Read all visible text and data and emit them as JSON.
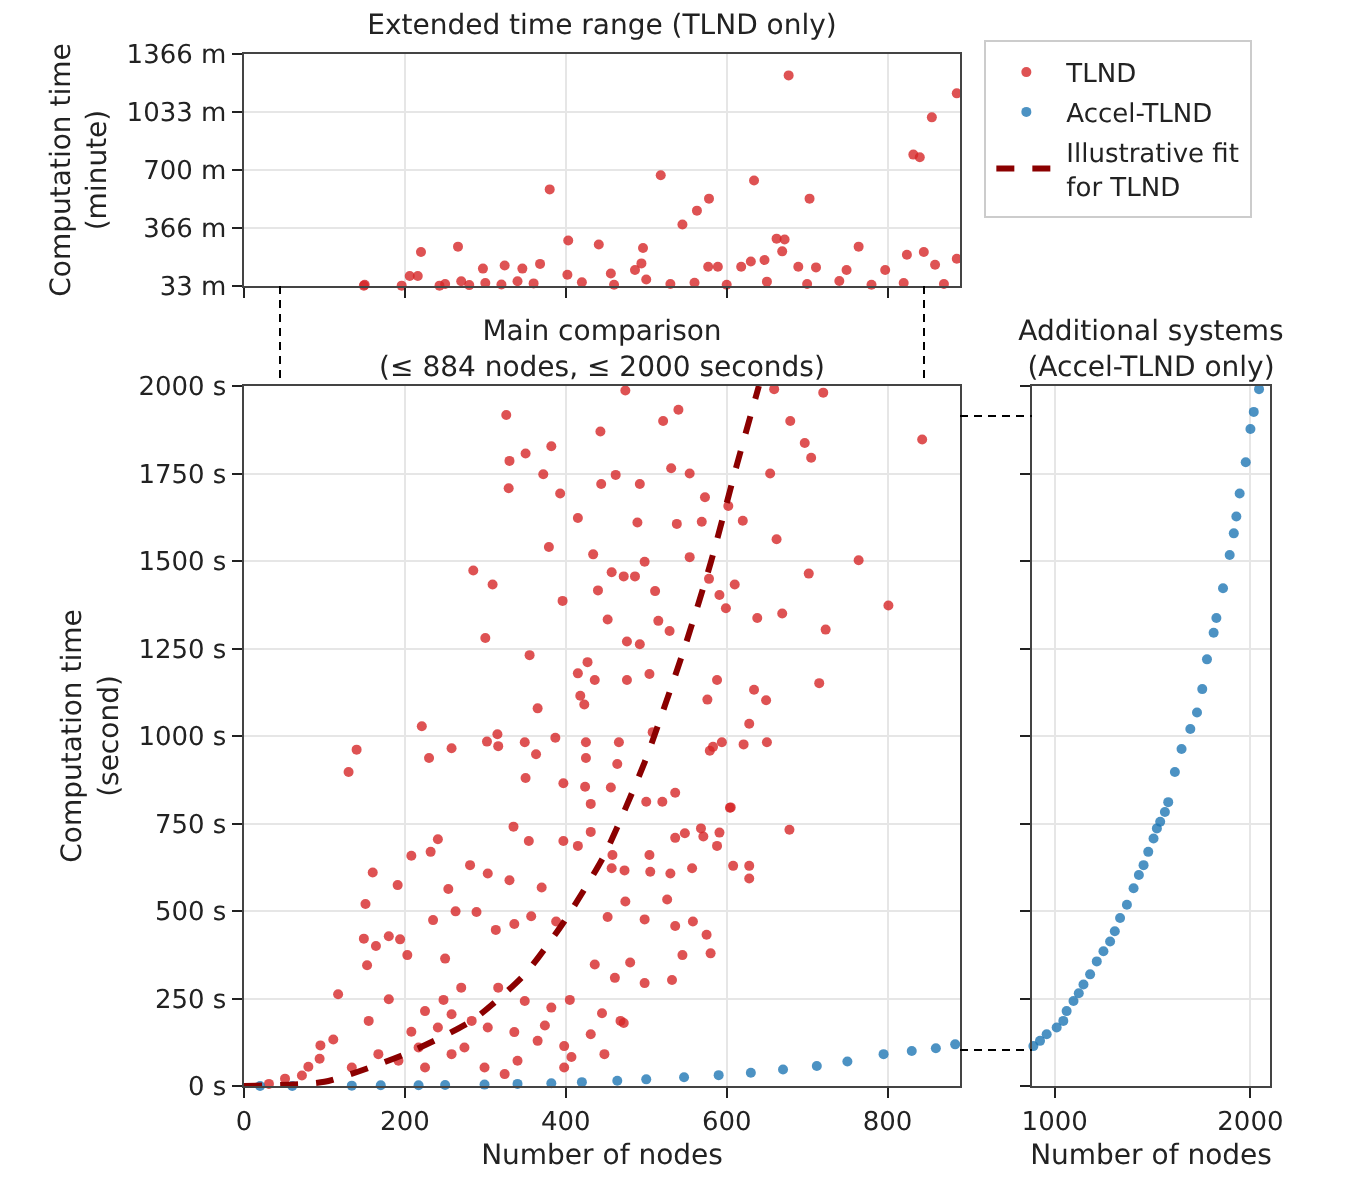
{
  "chart_data": [
    {
      "type": "scatter",
      "title": "Extended time range (TLND only)",
      "ylabel": "Computation time\n(minute)",
      "marker": "circle",
      "grid": true,
      "tick_labels": "y",
      "xlim": [
        0,
        890
      ],
      "xticks": [
        {
          "value": 0,
          "label": null
        },
        {
          "value": 200,
          "label": null
        },
        {
          "value": 400,
          "label": null
        },
        {
          "value": 600,
          "label": null
        },
        {
          "value": 800,
          "label": null
        }
      ],
      "ylim": [
        33,
        1366
      ],
      "yticks": [
        {
          "value": 33,
          "label": "33 m"
        },
        {
          "value": 366,
          "label": "366 m"
        },
        {
          "value": 700,
          "label": "700 m"
        },
        {
          "value": 1033,
          "label": "1033 m"
        },
        {
          "value": 1366,
          "label": "1366 m"
        }
      ],
      "series": [
        {
          "color": "#d62728",
          "x": [
            149,
            196,
            206,
            216,
            220,
            243,
            266,
            270,
            297,
            324,
            346,
            368,
            380,
            403,
            402,
            441,
            456,
            486,
            496,
            494,
            518,
            545,
            563,
            578,
            577,
            589,
            634,
            618,
            630,
            647,
            662,
            672,
            669,
            677,
            689,
            703,
            711,
            749,
            764,
            797,
            824,
            832,
            840,
            845,
            855,
            859,
            886,
            886,
            150,
            250,
            280,
            300,
            320,
            340,
            360,
            420,
            460,
            500,
            530,
            560,
            600,
            650,
            700,
            740,
            780,
            820,
            870
          ],
          "values": [
            35,
            35,
            90,
            90,
            228,
            35,
            259,
            60,
            133,
            151,
            133,
            160,
            588,
            294,
            98,
            271,
            105,
            125,
            251,
            163,
            669,
            386,
            466,
            535,
            144,
            144,
            639,
            144,
            174,
            182,
            305,
            300,
            232,
            1243,
            144,
            535,
            140,
            125,
            259,
            125,
            213,
            788,
            773,
            228,
            1002,
            155,
            1140,
            190,
            40,
            45,
            38,
            50,
            42,
            60,
            48,
            55,
            40,
            70,
            45,
            52,
            40,
            58,
            44,
            62,
            40,
            50,
            45
          ]
        }
      ]
    },
    {
      "type": "scatter",
      "title": "Main comparison\n(≤ 884 nodes, ≤ 2000 seconds)",
      "xlabel": "Number of nodes",
      "ylabel": "Computation time\n(second)",
      "marker": "circle",
      "grid": true,
      "legend": "top right",
      "xlim": [
        0,
        890
      ],
      "xticks": [
        0,
        200,
        400,
        600,
        800
      ],
      "ylim": [
        0,
        2000
      ],
      "yticks": [
        {
          "value": 0,
          "label": "0 s"
        },
        {
          "value": 250,
          "label": "250 s"
        },
        {
          "value": 500,
          "label": "500 s"
        },
        {
          "value": 750,
          "label": "750 s"
        },
        {
          "value": 1000,
          "label": "1000 s"
        },
        {
          "value": 1250,
          "label": "1250 s"
        },
        {
          "value": 1500,
          "label": "1500 s"
        },
        {
          "value": 1750,
          "label": "1750 s"
        },
        {
          "value": 2000,
          "label": "2000 s"
        }
      ],
      "series": [
        {
          "name": "TLND",
          "color": "#d62728",
          "x": [
            474,
            521,
            540,
            659,
            720,
            843,
            679,
            697,
            705,
            326,
            350,
            330,
            382,
            372,
            329,
            393,
            443,
            444,
            462,
            492,
            531,
            554,
            415,
            489,
            538,
            569,
            573,
            620,
            602,
            654,
            662,
            379,
            434,
            457,
            498,
            486,
            511,
            554,
            578,
            610,
            591,
            599,
            285,
            309,
            396,
            440,
            472,
            452,
            476,
            492,
            515,
            529,
            638,
            669,
            764,
            702,
            801,
            723,
            300,
            355,
            415,
            427,
            436,
            476,
            504,
            365,
            418,
            423,
            588,
            576,
            634,
            649,
            715,
            221,
            230,
            258,
            302,
            316,
            315,
            349,
            363,
            350,
            387,
            425,
            425,
            466,
            397,
            424,
            456,
            464,
            508,
            500,
            520,
            536,
            579,
            583,
            594,
            621,
            628,
            650,
            604,
            140,
            130,
            335,
            354,
            397,
            415,
            431,
            431,
            457,
            458,
            473,
            504,
            505,
            530,
            536,
            548,
            557,
            568,
            571,
            588,
            591,
            608,
            605,
            628,
            628,
            678,
            208,
            232,
            241,
            160,
            191,
            254,
            281,
            303,
            330,
            370,
            151,
            149,
            153,
            164,
            180,
            194,
            203,
            235,
            263,
            289,
            313,
            336,
            357,
            388,
            452,
            474,
            498,
            526,
            536,
            558,
            575,
            580,
            545,
            532,
            498,
            480,
            468,
            472,
            445,
            461,
            436,
            405,
            407,
            398,
            374,
            336,
            303,
            270,
            250,
            248,
            225,
            208,
            180,
            155,
            117,
            111,
            95,
            94,
            80,
            72,
            51,
            31,
            192,
            217,
            241,
            258,
            283,
            299,
            316,
            349,
            365,
            324,
            382,
            431,
            258,
            225,
            167,
            134,
            274,
            340,
            398,
            448
          ],
          "values": [
            1987,
            1900,
            1932,
            1991,
            1981,
            1847,
            1900,
            1837,
            1795,
            1917,
            1807,
            1786,
            1828,
            1748,
            1708,
            1693,
            1870,
            1720,
            1746,
            1720,
            1765,
            1750,
            1623,
            1610,
            1606,
            1612,
            1682,
            1615,
            1657,
            1750,
            1562,
            1540,
            1519,
            1468,
            1498,
            1456,
            1414,
            1511,
            1449,
            1433,
            1403,
            1365,
            1473,
            1433,
            1386,
            1416,
            1456,
            1333,
            1270,
            1262,
            1329,
            1300,
            1337,
            1350,
            1502,
            1464,
            1373,
            1304,
            1280,
            1231,
            1179,
            1211,
            1160,
            1160,
            1177,
            1079,
            1115,
            1090,
            1160,
            1104,
            1132,
            1102,
            1151,
            1028,
            937,
            965,
            984,
            971,
            1005,
            982,
            948,
            880,
            995,
            982,
            937,
            982,
            865,
            855,
            853,
            920,
            1011,
            812,
            812,
            838,
            958,
            969,
            982,
            976,
            1035,
            982,
            795,
            961,
            897,
            741,
            700,
            700,
            686,
            726,
            806,
            622,
            660,
            616,
            660,
            612,
            607,
            709,
            722,
            622,
            736,
            713,
            686,
            724,
            629,
            796,
            629,
            593,
            732,
            658,
            669,
            705,
            610,
            574,
            563,
            631,
            607,
            588,
            567,
            520,
            421,
            345,
            400,
            428,
            419,
            374,
            474,
            499,
            497,
            446,
            463,
            485,
            470,
            483,
            527,
            476,
            533,
            457,
            470,
            432,
            379,
            374,
            303,
            294,
            353,
            186,
            180,
            208,
            309,
            347,
            246,
            83,
            114,
            173,
            154,
            167,
            281,
            364,
            246,
            214,
            155,
            248,
            186,
            262,
            133,
            116,
            78,
            55,
            30,
            21,
            6,
            72,
            110,
            167,
            91,
            186,
            53,
            281,
            243,
            129,
            34,
            224,
            148,
            205,
            53,
            91,
            53,
            110,
            72,
            53,
            91
          ]
        },
        {
          "name": "Accel-TLND",
          "color": "#1f77b4",
          "x": [
            20,
            60,
            134,
            170,
            217,
            250,
            299,
            340,
            382,
            420,
            464,
            500,
            547,
            590,
            630,
            670,
            712,
            750,
            795,
            830,
            860,
            884
          ],
          "values": [
            0,
            0,
            1,
            2,
            2,
            3,
            4,
            6,
            8,
            11,
            15,
            19,
            25,
            31,
            38,
            47,
            57,
            70,
            91,
            100,
            108,
            119
          ]
        },
        {
          "name": "Illustrative fit\nfor TLND",
          "type": "line",
          "color": "#8b0000",
          "line_style": "dashed",
          "marker": "none",
          "x": [
            0,
            100,
            200,
            283,
            349,
            398,
            448,
            498,
            547,
            580,
            613,
            640
          ],
          "values": [
            0,
            12,
            91,
            186,
            319,
            470,
            660,
            925,
            1248,
            1494,
            1778,
            2000
          ]
        }
      ]
    },
    {
      "type": "scatter",
      "title": "Additional systems\n(Accel-TLND only)",
      "xlabel": "Number of nodes",
      "marker": "circle",
      "grid": true,
      "tick_labels": "x",
      "xlim": [
        884,
        2100
      ],
      "xticks": [
        1000,
        2000
      ],
      "ylim": [
        0,
        2000
      ],
      "yticks": [
        {
          "value": 0,
          "label": null
        },
        {
          "value": 250,
          "label": null
        },
        {
          "value": 500,
          "label": null
        },
        {
          "value": 750,
          "label": null
        },
        {
          "value": 1000,
          "label": null
        },
        {
          "value": 1250,
          "label": null
        },
        {
          "value": 1500,
          "label": null
        },
        {
          "value": 1750,
          "label": null
        },
        {
          "value": 2000,
          "label": null
        }
      ],
      "series": [
        {
          "color": "#1f77b4",
          "x": [
            891,
            925,
            959,
            1010,
            1044,
            1061,
            1096,
            1123,
            1147,
            1181,
            1215,
            1249,
            1283,
            1307,
            1334,
            1369,
            1403,
            1430,
            1454,
            1478,
            1505,
            1522,
            1539,
            1563,
            1580,
            1614,
            1648,
            1693,
            1727,
            1754,
            1778,
            1812,
            1826,
            1860,
            1894,
            1915,
            1928,
            1945,
            1976,
            2000,
            2017,
            2044
          ],
          "values": [
            114,
            129,
            148,
            167,
            186,
            214,
            243,
            265,
            290,
            319,
            356,
            385,
            413,
            442,
            480,
            518,
            565,
            603,
            631,
            669,
            707,
            736,
            755,
            783,
            811,
            897,
            963,
            1020,
            1067,
            1134,
            1219,
            1295,
            1337,
            1422,
            1517,
            1579,
            1627,
            1693,
            1782,
            1877,
            1926,
            1991
          ]
        }
      ]
    }
  ]
}
